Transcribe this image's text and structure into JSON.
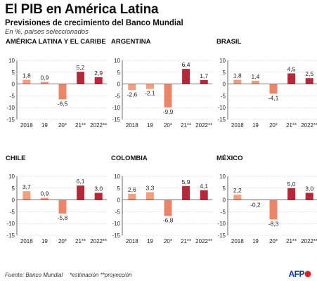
{
  "header": {
    "title": "El PIB en América Latina",
    "subtitle": "Previsiones de crecimiento del Banco Mundial",
    "note": "En %, países seleccionados"
  },
  "footer": {
    "source": "Fuente: Banco Mundial",
    "notes": "*estimación **proyección",
    "logo_text": "AFP"
  },
  "colors": {
    "past": "#f0a07e",
    "estimate": "#e8866a",
    "projection": "#b5283a"
  },
  "chart_data": [
    {
      "type": "bar",
      "title": "AMÉRICA LATINA Y EL CARIBE",
      "categories": [
        "2018",
        "19",
        "20*",
        "21**",
        "2022**"
      ],
      "values": [
        1.8,
        0.9,
        -6.5,
        5.2,
        2.9
      ],
      "value_labels": [
        "1,8",
        "0,9",
        "-6,5",
        "5,2",
        "2,9"
      ],
      "ylim": [
        -15,
        10
      ],
      "yticks": [
        "-15",
        "-10",
        "-5",
        "0",
        "5",
        "10"
      ]
    },
    {
      "type": "bar",
      "title": "ARGENTINA",
      "categories": [
        "2018",
        "19",
        "20*",
        "21**",
        "2022**"
      ],
      "values": [
        -2.6,
        -2.1,
        -9.9,
        6.4,
        1.7
      ],
      "value_labels": [
        "-2,6",
        "-2,1",
        "-9,9",
        "6,4",
        "1,7"
      ],
      "ylim": [
        -15,
        10
      ],
      "yticks": [
        "-15",
        "-10",
        "-5",
        "0",
        "5",
        "10"
      ]
    },
    {
      "type": "bar",
      "title": "BRASIL",
      "categories": [
        "2018",
        "19",
        "20*",
        "21**",
        "2022**"
      ],
      "values": [
        1.8,
        1.4,
        -4.1,
        4.5,
        2.5
      ],
      "value_labels": [
        "1,8",
        "1,4",
        "-4,1",
        "4,5",
        "2,5"
      ],
      "ylim": [
        -15,
        10
      ],
      "yticks": [
        "-15",
        "-10",
        "-5",
        "0",
        "5",
        "10"
      ]
    },
    {
      "type": "bar",
      "title": "CHILE",
      "categories": [
        "2018",
        "19",
        "20*",
        "21**",
        "2022**"
      ],
      "values": [
        3.7,
        0.9,
        -5.8,
        6.1,
        3.0
      ],
      "value_labels": [
        "3,7",
        "0,9",
        "-5,8",
        "6,1",
        "3,0"
      ],
      "ylim": [
        -15,
        10
      ],
      "yticks": [
        "-15",
        "-10",
        "-5",
        "0",
        "5",
        "10"
      ]
    },
    {
      "type": "bar",
      "title": "COLOMBIA",
      "categories": [
        "2018",
        "19",
        "20*",
        "21**",
        "2022**"
      ],
      "values": [
        2.6,
        3.3,
        -6.8,
        5.9,
        4.1
      ],
      "value_labels": [
        "2,6",
        "3,3",
        "-6,8",
        "5,9",
        "4,1"
      ],
      "ylim": [
        -15,
        10
      ],
      "yticks": [
        "-15",
        "-10",
        "-5",
        "0",
        "5",
        "10"
      ]
    },
    {
      "type": "bar",
      "title": "MÉXICO",
      "categories": [
        "2018",
        "19",
        "20*",
        "21**",
        "2022**"
      ],
      "values": [
        2.2,
        -0.2,
        -8.3,
        5.0,
        3.0
      ],
      "value_labels": [
        "2,2",
        "-0,2",
        "-8,3",
        "5,0",
        "3,0"
      ],
      "ylim": [
        -15,
        10
      ],
      "yticks": [
        "-15",
        "-10",
        "-5",
        "0",
        "5",
        "10"
      ]
    }
  ]
}
